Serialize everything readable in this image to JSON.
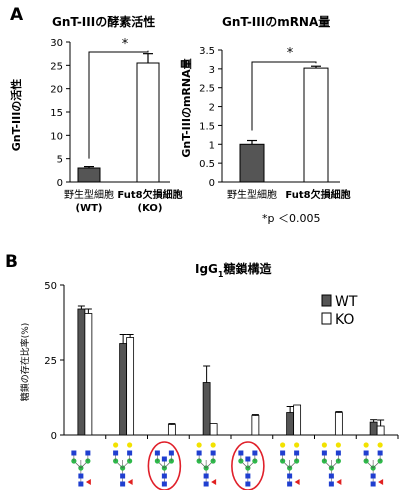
{
  "panel_a_letter": "A",
  "panel_b_letter": "B",
  "significance_mark": "*",
  "pvalue_note": "*p ＜0.005",
  "colors": {
    "dark_bar": "#555555",
    "light_bar": "#ffffff",
    "axis": "#000000",
    "glycan_blue": "#1f3fd0",
    "glycan_green": "#2eb84a",
    "glycan_yellow": "#f2e200",
    "glycan_red": "#e02020",
    "circle": "#e0202a"
  },
  "chart_data": [
    {
      "type": "bar",
      "title": "GnT-IIIの酵素活性",
      "ylabel": "GnT-IIIの活性",
      "ylim": [
        0,
        30
      ],
      "yticks": [
        "0",
        "5",
        "10",
        "15",
        "20",
        "25",
        "30"
      ],
      "categories": [
        {
          "line1": "野生型細胞",
          "line2": "(WT)"
        },
        {
          "line1": "Fut8欠損細胞",
          "line2": "(KO)"
        }
      ],
      "values": [
        3,
        25.5
      ],
      "errors": [
        0.3,
        2
      ],
      "bar_colors": [
        "dark",
        "light"
      ]
    },
    {
      "type": "bar",
      "title": "GnT-IIIのmRNA量",
      "ylabel": "GnT-IIIのmRNA量",
      "ylim": [
        0,
        3.5
      ],
      "yticks": [
        "0",
        "0.5",
        "1",
        "1.5",
        "2",
        "2.5",
        "3",
        "3.5"
      ],
      "categories": [
        {
          "line1": "野生型細胞",
          "line2": ""
        },
        {
          "line1": "Fut8欠損細胞",
          "line2": ""
        }
      ],
      "values": [
        1,
        3.02
      ],
      "errors": [
        0.1,
        0.05
      ],
      "bar_colors": [
        "dark",
        "light"
      ]
    },
    {
      "type": "bar",
      "title": "IgG",
      "title_sub": "1",
      "title_rest": "糖鎖構造",
      "ylabel": "糖鎖の存在比率(%)",
      "ylim": [
        0,
        50
      ],
      "yticks": [
        "0",
        "25",
        "50"
      ],
      "legend_position": "top-right",
      "series": [
        {
          "name": "WT",
          "color": "dark",
          "values": [
            42,
            30.5,
            0,
            17.5,
            0,
            7.5,
            0,
            4.3
          ],
          "errors": [
            1,
            3,
            0,
            5.5,
            0,
            2,
            0,
            0.8
          ]
        },
        {
          "name": "KO",
          "color": "light",
          "values": [
            40.5,
            32.5,
            3.5,
            3.8,
            6.5,
            10,
            7.5,
            3
          ],
          "errors": [
            1.5,
            1,
            0.3,
            0,
            0.3,
            0,
            0.3,
            2
          ]
        }
      ],
      "glycans": [
        {
          "core_fucose": true,
          "bisect": false,
          "gal": 0,
          "nonfuc_red": false
        },
        {
          "core_fucose": true,
          "bisect": false,
          "gal": 2,
          "nonfuc_red": false
        },
        {
          "core_fucose": false,
          "bisect": true,
          "gal": 0,
          "nonfuc_red": false,
          "circled": true
        },
        {
          "core_fucose": true,
          "bisect": false,
          "gal": 2,
          "nonfuc_red": false
        },
        {
          "core_fucose": false,
          "bisect": true,
          "gal": 0,
          "nonfuc_red": false,
          "circled": true
        },
        {
          "core_fucose": true,
          "bisect": false,
          "gal": 2,
          "nonfuc_red": false
        },
        {
          "core_fucose": true,
          "bisect": false,
          "gal": 2,
          "nonfuc_red": false
        },
        {
          "core_fucose": true,
          "bisect": false,
          "gal": 2,
          "nonfuc_red": false
        }
      ]
    }
  ]
}
